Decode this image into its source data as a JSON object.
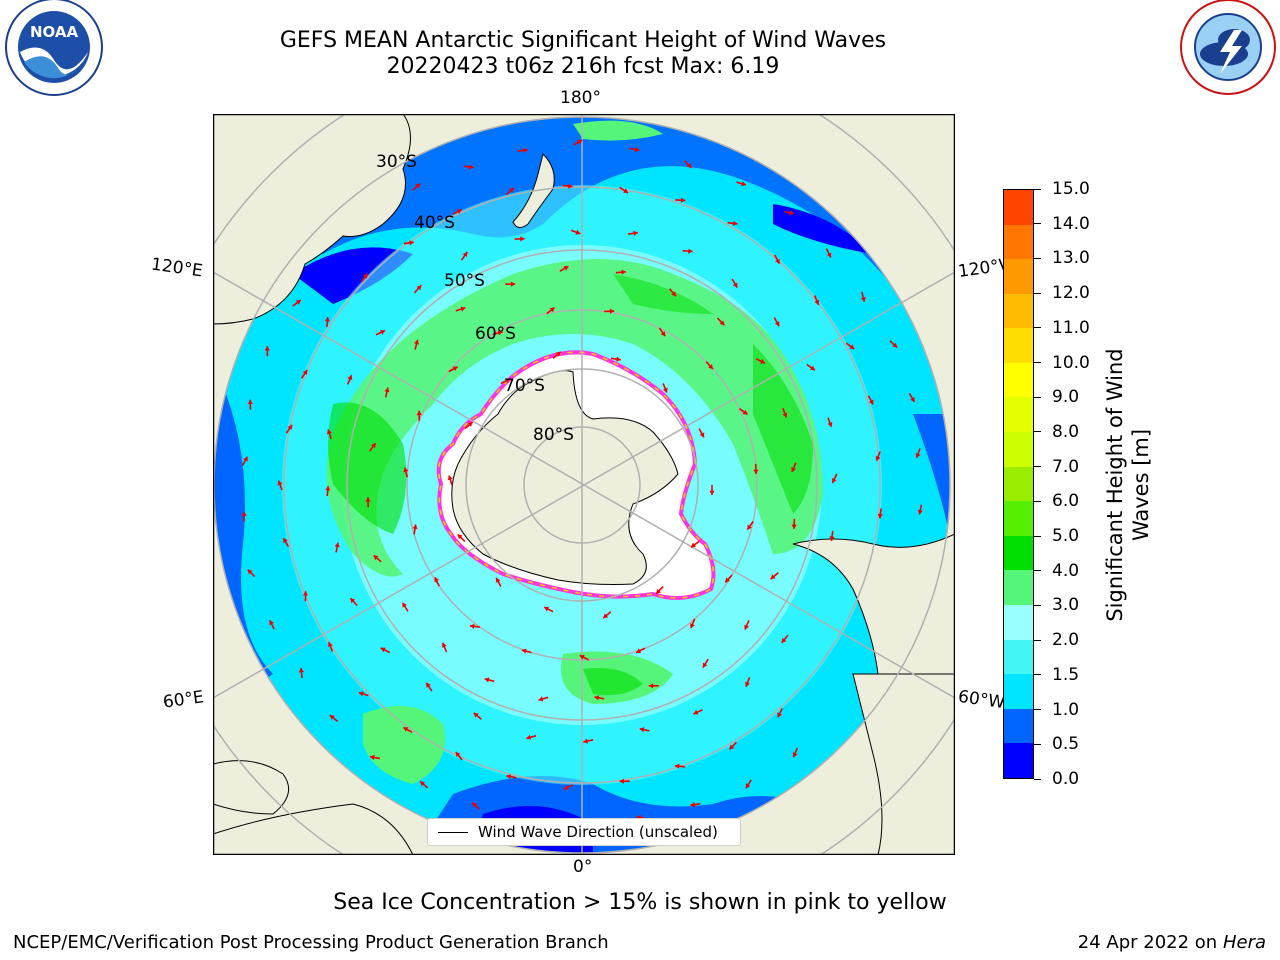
{
  "header": {
    "title_line1": "GEFS MEAN Antarctic Significant Height of Wind Waves",
    "title_line2": "20220423 t06z 216h fcst   Max: 6.19"
  },
  "logos": {
    "left": {
      "name": "NOAA",
      "ring_text": "NATIONAL OCEANIC AND ATMOSPHERIC ADMINISTRATION · U.S. DEPARTMENT OF COMMERCE"
    },
    "right": {
      "name": "NATIONAL WEATHER SERVICE"
    }
  },
  "map": {
    "projection": "south-polar-stereographic",
    "lon_labels": {
      "top": "180°",
      "bottom": "0°",
      "upper_left": "120°E",
      "upper_right": "120°W",
      "lower_left": "60°E",
      "lower_right": "60°W"
    },
    "lat_labels": [
      "30°S",
      "40°S",
      "50°S",
      "60°S",
      "70°S",
      "80°S"
    ],
    "legend_text": "Wind Wave Direction (unscaled)",
    "colors": {
      "land": "#eeeedd",
      "ice_edge_pink": "#ff33dd",
      "ice_edge_yellow": "#ffcc00",
      "arrow": "#ee0000",
      "grid": "#b0b0b0"
    }
  },
  "colorbar": {
    "label_line1": "Significant Height of Wind",
    "label_line2": "Waves [m]",
    "ticks": [
      "15.0",
      "14.0",
      "13.0",
      "12.0",
      "11.0",
      "10.0",
      "9.0",
      "8.0",
      "7.0",
      "6.0",
      "5.0",
      "4.0",
      "3.0",
      "2.0",
      "1.5",
      "1.0",
      "0.5",
      "0.0"
    ],
    "colors_bottom_to_top": [
      "#0000ff",
      "#0066ff",
      "#00e5ff",
      "#44f5f5",
      "#99ffff",
      "#55f57a",
      "#00dd00",
      "#55ee00",
      "#99ee00",
      "#ccff00",
      "#e5ff00",
      "#ffff00",
      "#ffdd00",
      "#ffbb00",
      "#ff9900",
      "#ff7700",
      "#ff4400"
    ]
  },
  "note": "Sea Ice Concentration > 15% is shown in pink to yellow",
  "footer": {
    "left": "NCEP/EMC/Verification Post Processing Product Generation Branch",
    "right_prefix": "24 Apr 2022 on ",
    "right_machine": "Hera"
  }
}
